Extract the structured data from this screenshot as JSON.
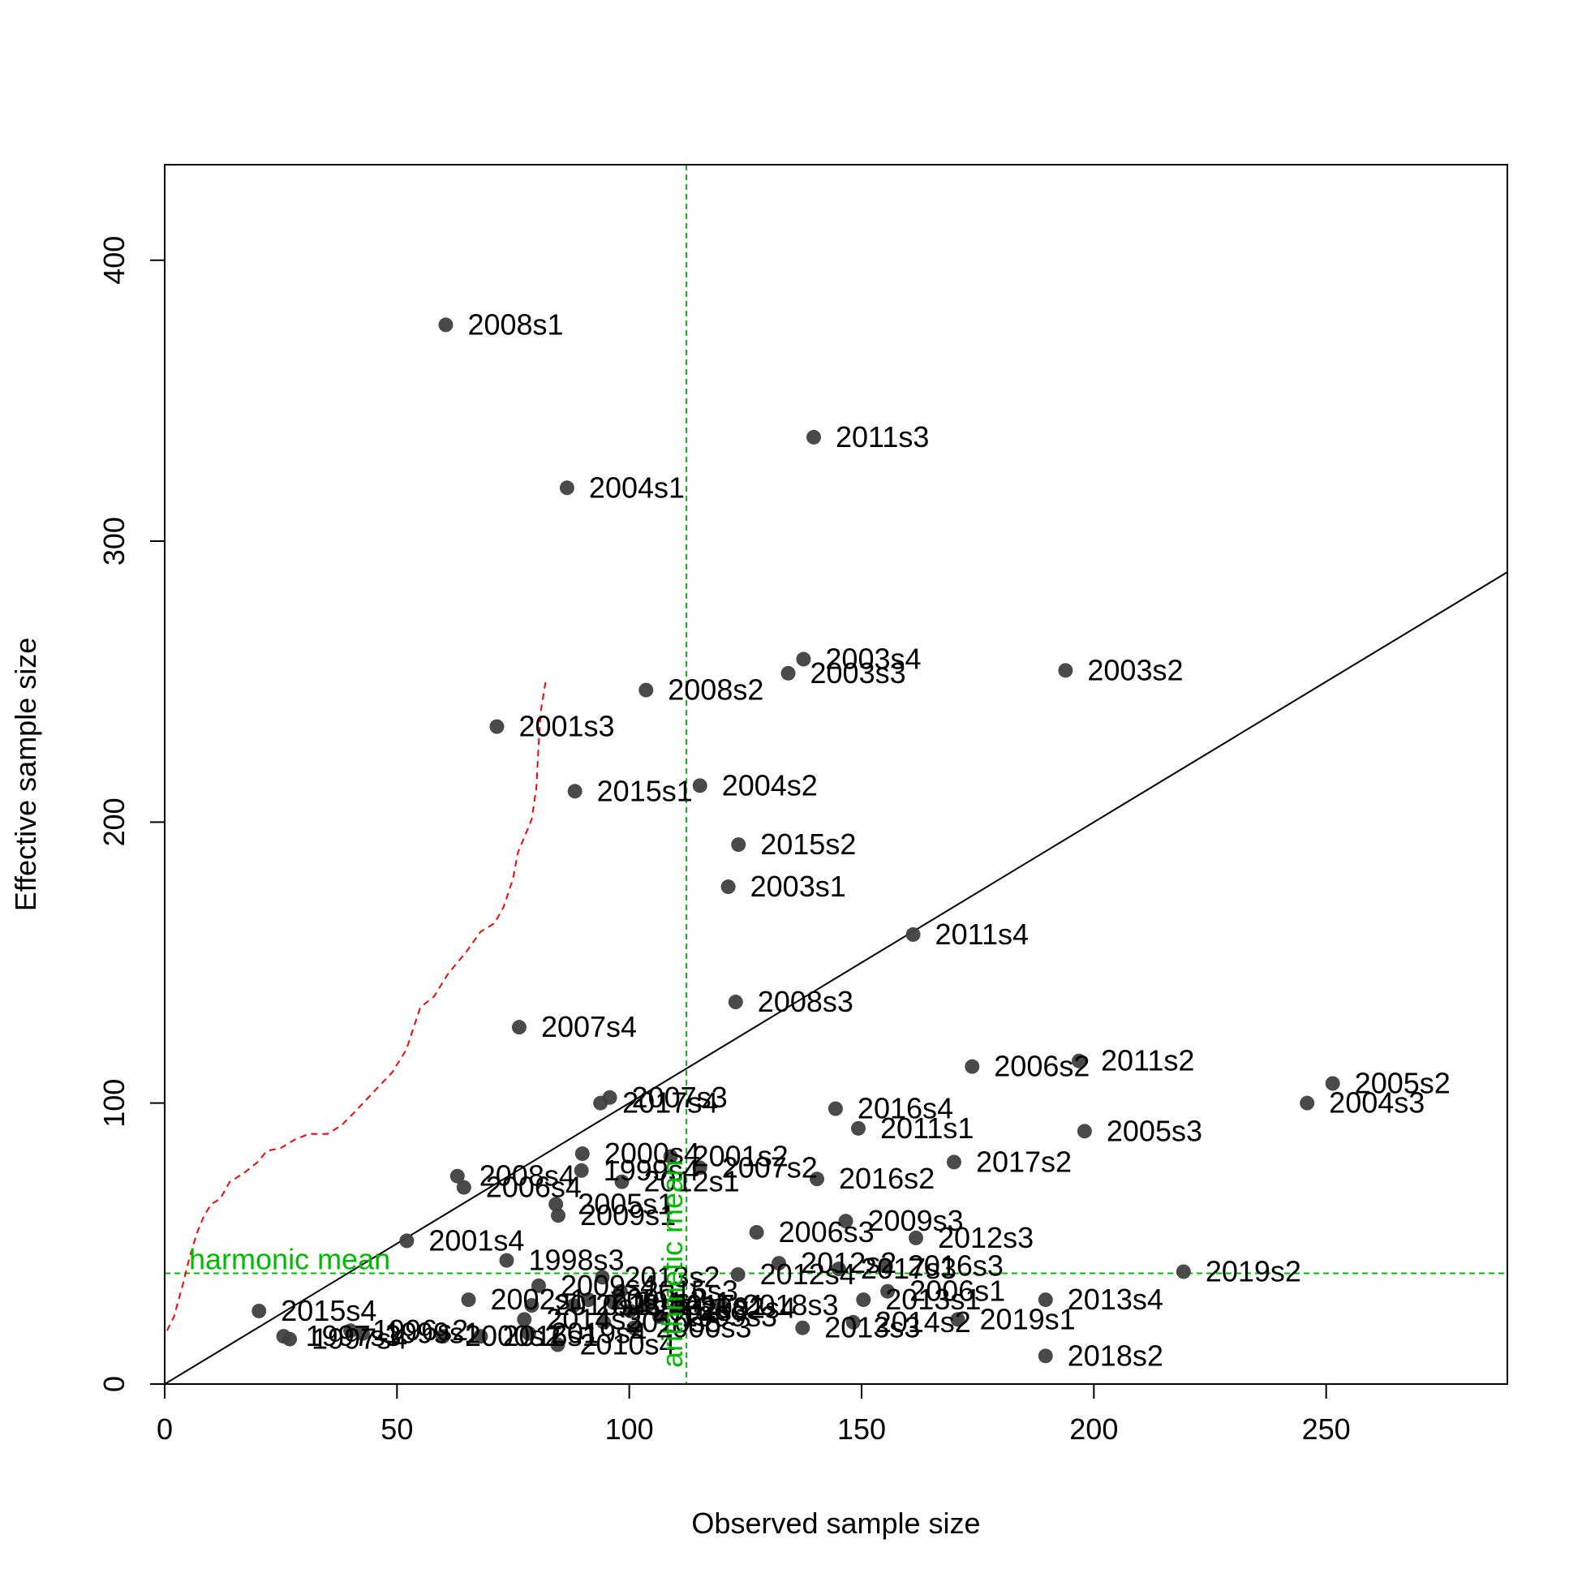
{
  "chart_data": {
    "type": "scatter",
    "title": "",
    "xlabel": "Observed sample size",
    "ylabel": "Effective sample size",
    "xlim": [
      0,
      289
    ],
    "ylim": [
      0,
      434
    ],
    "xticks": [
      0,
      50,
      100,
      150,
      200,
      250
    ],
    "yticks": [
      0,
      100,
      200,
      300,
      400
    ],
    "grid": false,
    "colors": {
      "points": "#404040",
      "identity_line": "#000000",
      "mean_lines": "#00bb00",
      "smoother": "#ff0000"
    },
    "points": [
      {
        "label": "2008s1",
        "x": 60.5,
        "y": 377
      },
      {
        "label": "2011s3",
        "x": 139.7,
        "y": 337
      },
      {
        "label": "2004s1",
        "x": 86.6,
        "y": 319
      },
      {
        "label": "2003s4",
        "x": 137.5,
        "y": 258
      },
      {
        "label": "2003s3",
        "x": 134.2,
        "y": 253
      },
      {
        "label": "2003s2",
        "x": 193.9,
        "y": 254
      },
      {
        "label": "2008s2",
        "x": 103.6,
        "y": 247
      },
      {
        "label": "2001s3",
        "x": 71.5,
        "y": 234
      },
      {
        "label": "2015s1",
        "x": 88.3,
        "y": 211
      },
      {
        "label": "2004s2",
        "x": 115.2,
        "y": 213
      },
      {
        "label": "2015s2",
        "x": 123.5,
        "y": 192
      },
      {
        "label": "2003s1",
        "x": 121.3,
        "y": 177
      },
      {
        "label": "2011s4",
        "x": 161.1,
        "y": 160
      },
      {
        "label": "2008s3",
        "x": 122.9,
        "y": 136
      },
      {
        "label": "2007s4",
        "x": 76.3,
        "y": 127
      },
      {
        "label": "2006s2",
        "x": 173.8,
        "y": 113
      },
      {
        "label": "2011s2",
        "x": 196.8,
        "y": 115
      },
      {
        "label": "2005s2",
        "x": 251.4,
        "y": 107
      },
      {
        "label": "2004s3",
        "x": 245.9,
        "y": 100
      },
      {
        "label": "2007s3",
        "x": 95.8,
        "y": 102
      },
      {
        "label": "2017s4",
        "x": 93.8,
        "y": 100
      },
      {
        "label": "2016s4",
        "x": 144.4,
        "y": 98
      },
      {
        "label": "2011s1",
        "x": 149.3,
        "y": 91
      },
      {
        "label": "2005s3",
        "x": 198.0,
        "y": 90
      },
      {
        "label": "2000s4",
        "x": 89.9,
        "y": 82
      },
      {
        "label": "2001s2",
        "x": 108.9,
        "y": 81
      },
      {
        "label": "1999s4",
        "x": 89.7,
        "y": 76
      },
      {
        "label": "2007s2",
        "x": 115.2,
        "y": 77
      },
      {
        "label": "2012s1",
        "x": 98.4,
        "y": 72
      },
      {
        "label": "2017s2",
        "x": 169.9,
        "y": 79
      },
      {
        "label": "2016s2",
        "x": 140.4,
        "y": 73
      },
      {
        "label": "2008s4",
        "x": 63.0,
        "y": 74
      },
      {
        "label": "2006s4",
        "x": 64.4,
        "y": 70
      },
      {
        "label": "2005s1",
        "x": 84.2,
        "y": 64
      },
      {
        "label": "2009s1",
        "x": 84.7,
        "y": 60
      },
      {
        "label": "2009s3",
        "x": 146.6,
        "y": 58
      },
      {
        "label": "2006s3",
        "x": 127.4,
        "y": 54
      },
      {
        "label": "2012s3",
        "x": 161.7,
        "y": 52
      },
      {
        "label": "2001s4",
        "x": 52.1,
        "y": 51
      },
      {
        "label": "2019s2",
        "x": 219.3,
        "y": 40
      },
      {
        "label": "1998s3",
        "x": 73.6,
        "y": 44
      },
      {
        "label": "2015s4",
        "x": 20.3,
        "y": 26
      },
      {
        "label": "1997s3",
        "x": 25.6,
        "y": 17
      },
      {
        "label": "1997s4",
        "x": 26.9,
        "y": 16
      },
      {
        "label": "2013s4",
        "x": 189.6,
        "y": 30
      },
      {
        "label": "2019s1",
        "x": 170.7,
        "y": 23
      },
      {
        "label": "2018s2",
        "x": 189.6,
        "y": 10
      },
      {
        "label": "2013s3",
        "x": 137.3,
        "y": 20
      },
      {
        "label": "2006s1",
        "x": 155.6,
        "y": 33
      },
      {
        "label": "2014s2",
        "x": 148.2,
        "y": 22
      },
      {
        "label": "2012s2",
        "x": 132.2,
        "y": 43
      },
      {
        "label": "2017s3",
        "x": 145.1,
        "y": 41
      },
      {
        "label": "2016s3",
        "x": 155.2,
        "y": 42
      },
      {
        "label": "2013s1",
        "x": 150.4,
        "y": 30
      },
      {
        "label": "2010s4",
        "x": 84.6,
        "y": 14
      },
      {
        "label": "1996s2",
        "x": 40.0,
        "y": 19
      },
      {
        "label": "1999s1",
        "x": 42.6,
        "y": 18
      },
      {
        "label": "2002s1",
        "x": 65.4,
        "y": 30
      },
      {
        "label": "2014s3",
        "x": 77.4,
        "y": 23
      },
      {
        "label": "2012s4",
        "x": 123.4,
        "y": 39
      },
      {
        "label": "2013s2",
        "x": 94.2,
        "y": 38
      },
      {
        "label": "2015s3",
        "x": 98.1,
        "y": 33
      },
      {
        "label": "2018s1",
        "x": 88.0,
        "y": 28
      },
      {
        "label": "2002s3",
        "x": 100.2,
        "y": 26
      },
      {
        "label": "2010s1",
        "x": 79.0,
        "y": 28
      },
      {
        "label": "2017s1",
        "x": 104.0,
        "y": 28
      },
      {
        "label": "2002s4",
        "x": 110.5,
        "y": 27
      },
      {
        "label": "2018s3",
        "x": 119.7,
        "y": 28
      },
      {
        "label": "2009s2",
        "x": 91.2,
        "y": 30
      },
      {
        "label": "2014s1",
        "x": 96.6,
        "y": 29
      },
      {
        "label": "2016s1",
        "x": 68.0,
        "y": 17
      },
      {
        "label": "2000s2",
        "x": 59.9,
        "y": 17
      },
      {
        "label": "2019s4",
        "x": 78.4,
        "y": 18
      },
      {
        "label": "1999s3",
        "x": 106.5,
        "y": 24
      },
      {
        "label": "2010s3",
        "x": 94.5,
        "y": 22
      },
      {
        "label": "2009s4",
        "x": 80.5,
        "y": 35
      },
      {
        "label": "2000s3",
        "x": 101.0,
        "y": 20
      }
    ],
    "reference_lines": [
      {
        "type": "identity",
        "label": ""
      },
      {
        "type": "horizontal",
        "label": "harmonic mean",
        "value": 39.4
      },
      {
        "type": "vertical",
        "label": "arithmetic mean",
        "value": 112.3
      }
    ],
    "smoother": [
      [
        0.5,
        19
      ],
      [
        2,
        24
      ],
      [
        4,
        36
      ],
      [
        5.5,
        46
      ],
      [
        7,
        54
      ],
      [
        8.5,
        60
      ],
      [
        10,
        64
      ],
      [
        12,
        66
      ],
      [
        14,
        72
      ],
      [
        17,
        75
      ],
      [
        20,
        79
      ],
      [
        22,
        83
      ],
      [
        25,
        84
      ],
      [
        28,
        87
      ],
      [
        31,
        89
      ],
      [
        35,
        89
      ],
      [
        38,
        92
      ],
      [
        41,
        97
      ],
      [
        45,
        104
      ],
      [
        49,
        111
      ],
      [
        52,
        119
      ],
      [
        55,
        134
      ],
      [
        58,
        138
      ],
      [
        61,
        146
      ],
      [
        65,
        154
      ],
      [
        68,
        161
      ],
      [
        71,
        164
      ],
      [
        73,
        170
      ],
      [
        75,
        180
      ],
      [
        76,
        189
      ],
      [
        78,
        197
      ],
      [
        79,
        201
      ],
      [
        80,
        212
      ],
      [
        80.5,
        228
      ],
      [
        81,
        240
      ],
      [
        82,
        250
      ]
    ]
  }
}
